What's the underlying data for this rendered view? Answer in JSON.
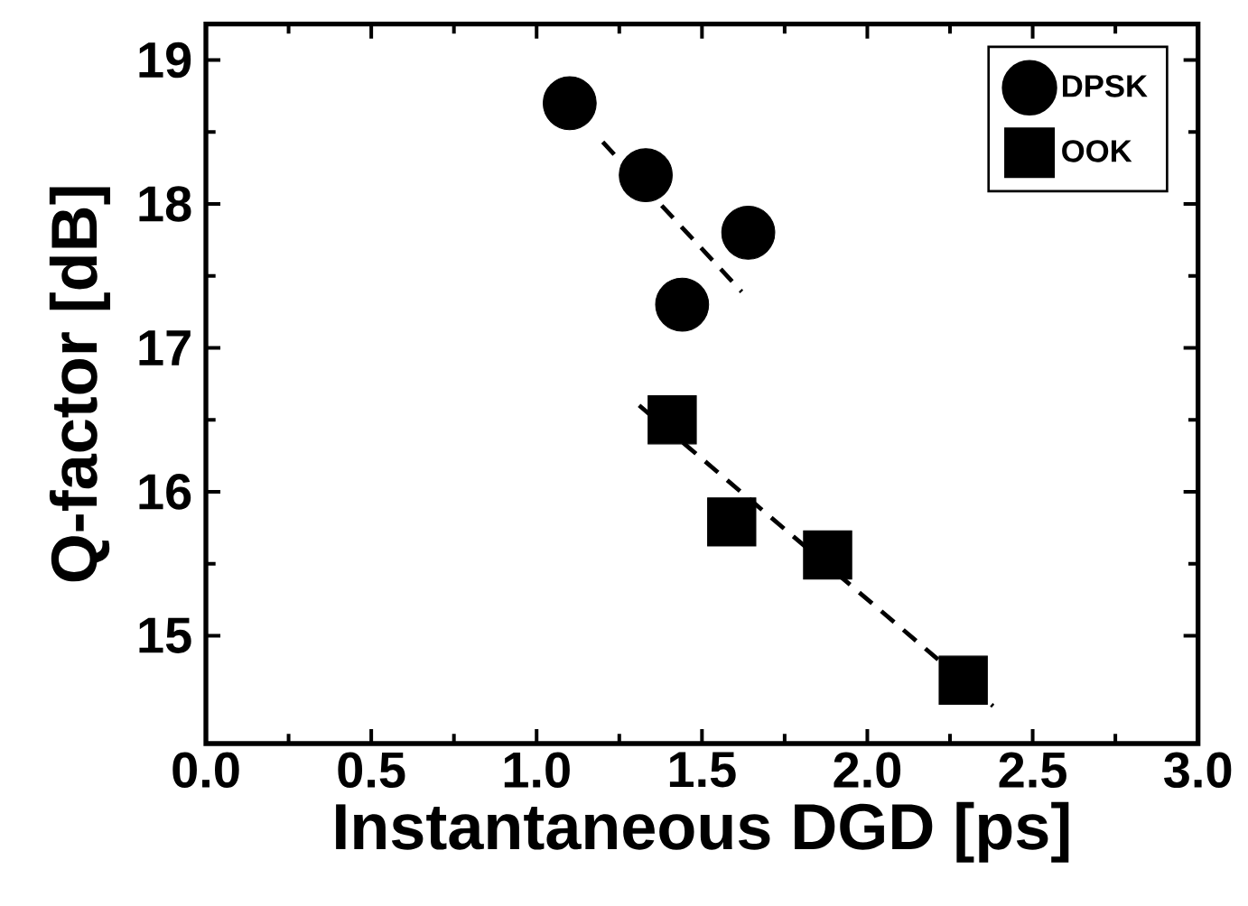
{
  "chart_data": {
    "type": "scatter",
    "xlabel": "Instantaneous DGD [ps]",
    "ylabel": "Q-factor [dB]",
    "xlim": [
      0,
      3.0
    ],
    "ylim": [
      14.25,
      19.25
    ],
    "xticks": [
      {
        "value": 0,
        "label": "0.0"
      },
      0.5,
      {
        "value": 1,
        "label": "1.0"
      },
      1.5,
      {
        "value": 2,
        "label": "2.0"
      },
      2.5,
      {
        "value": 3,
        "label": "3.0"
      }
    ],
    "yticks": [
      15,
      16,
      17,
      18,
      19
    ],
    "grid": false,
    "legend": "top right",
    "series": [
      {
        "name": "DPSK",
        "color": "#000000",
        "marker": "circle",
        "x": [
          1.1,
          1.33,
          1.64,
          1.44
        ],
        "values": [
          18.7,
          18.2,
          17.8,
          17.3
        ]
      },
      {
        "name": "OOK",
        "color": "#000000",
        "marker": "square",
        "x": [
          1.41,
          1.59,
          1.88,
          2.29
        ],
        "values": [
          16.5,
          15.79,
          15.56,
          14.69
        ]
      },
      {
        "type": "line",
        "color": "#000000",
        "line_style": "dashed",
        "marker": "none",
        "x": [
          1.2,
          1.62
        ],
        "values": [
          18.43,
          17.39
        ]
      },
      {
        "type": "line",
        "color": "#000000",
        "line_style": "dashed",
        "marker": "none",
        "x": [
          1.31,
          2.38
        ],
        "values": [
          16.6,
          14.51
        ]
      }
    ]
  }
}
